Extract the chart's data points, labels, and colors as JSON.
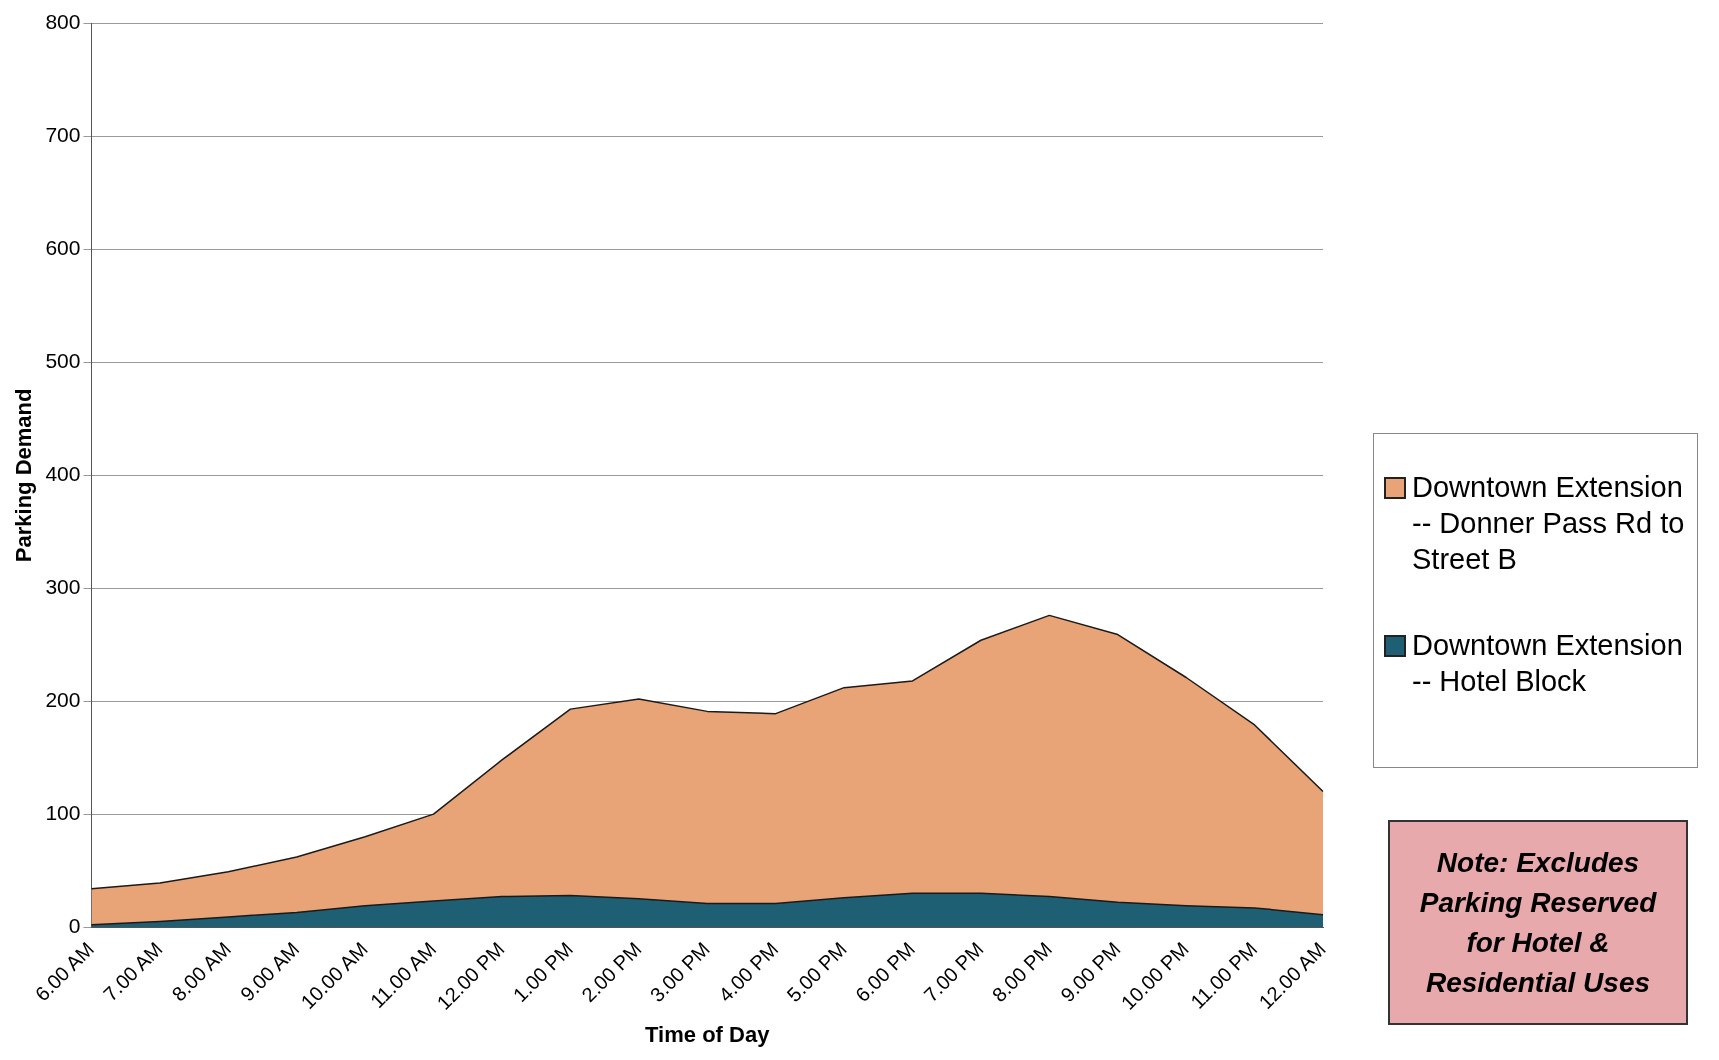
{
  "chart_data": {
    "type": "area",
    "xlabel": "Time of Day",
    "ylabel": "Parking Demand",
    "stacked": true,
    "legend": "right",
    "grid": "y",
    "categories": [
      "6.00 AM",
      "7.00 AM",
      "8.00 AM",
      "9.00 AM",
      "10.00 AM",
      "11.00 AM",
      "12.00 PM",
      "1.00 PM",
      "2.00 PM",
      "3.00 PM",
      "4.00 PM",
      "5.00 PM",
      "6.00 PM",
      "7.00 PM",
      "8.00 PM",
      "9.00 PM",
      "10.00 PM",
      "11.00 PM",
      "12.00 AM"
    ],
    "series": [
      {
        "name": "Downtown Extension -- Hotel Block",
        "color": "#1f5f73",
        "values": [
          2,
          5,
          9,
          13,
          19,
          23,
          27,
          28,
          25,
          21,
          21,
          26,
          30,
          30,
          27,
          22,
          19,
          17,
          11
        ]
      },
      {
        "name": "Downtown Extension -- Donner Pass Rd to Street  B",
        "color": "#e8a477",
        "values": [
          32,
          34,
          40,
          49,
          61,
          77,
          121,
          165,
          177,
          170,
          168,
          186,
          188,
          224,
          249,
          237,
          202,
          162,
          109
        ]
      }
    ],
    "ylim": [
      0,
      800
    ],
    "yticks": [
      0,
      100,
      200,
      300,
      400,
      500,
      600,
      700,
      800
    ],
    "annotations": [
      "Note: Excludes Parking Reserved for Hotel & Residential Uses"
    ]
  }
}
